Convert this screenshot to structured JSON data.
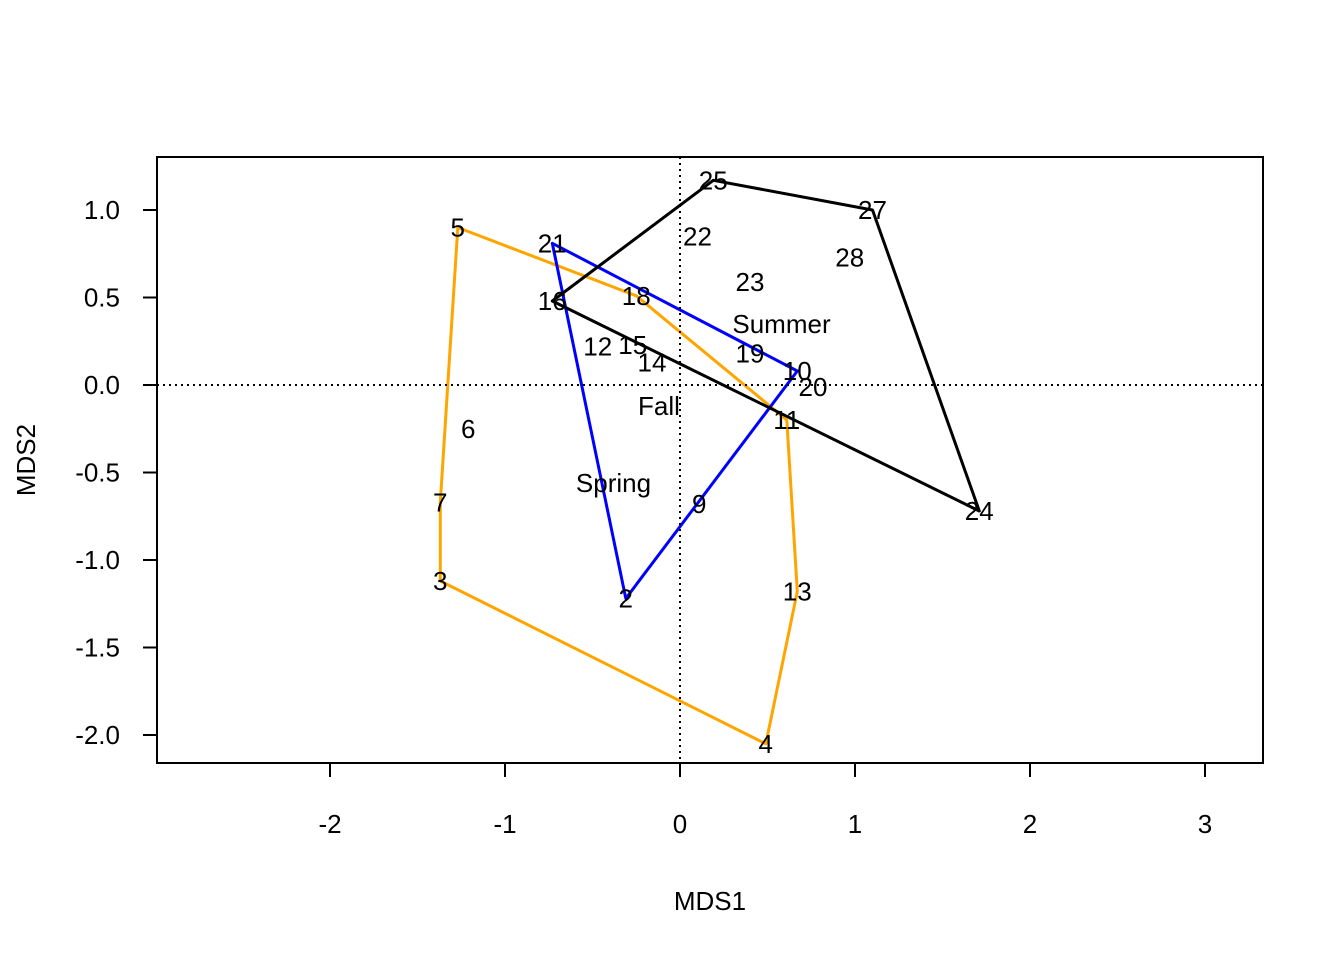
{
  "chart_data": {
    "type": "scatter",
    "title": "",
    "xlabel": "MDS1",
    "ylabel": "MDS2",
    "xlim": [
      -3,
      3.3
    ],
    "ylim": [
      -2.16,
      1.3
    ],
    "x_ticks": [
      -2,
      -1,
      0,
      1,
      2,
      3
    ],
    "x_tick_labels": [
      "-2",
      "-1",
      "0",
      "1",
      "2",
      "3"
    ],
    "y_ticks": [
      -2.0,
      -1.5,
      -1.0,
      -0.5,
      0.0,
      0.5,
      1.0
    ],
    "y_tick_labels": [
      "-2.0",
      "-1.5",
      "-1.0",
      "-0.5",
      "0.0",
      "0.5",
      "1.0"
    ],
    "reference_lines": {
      "x": 0,
      "y": 0,
      "style": "dotted"
    },
    "grid": false,
    "points": [
      {
        "label": "2",
        "x": -0.31,
        "y": -1.22
      },
      {
        "label": "3",
        "x": -1.37,
        "y": -1.12
      },
      {
        "label": "4",
        "x": 0.49,
        "y": -2.05
      },
      {
        "label": "5",
        "x": -1.27,
        "y": 0.9
      },
      {
        "label": "6",
        "x": -1.21,
        "y": -0.25
      },
      {
        "label": "7",
        "x": -1.37,
        "y": -0.67
      },
      {
        "label": "9",
        "x": 0.11,
        "y": -0.68
      },
      {
        "label": "10",
        "x": 0.67,
        "y": 0.08
      },
      {
        "label": "11",
        "x": 0.61,
        "y": -0.2
      },
      {
        "label": "12",
        "x": -0.47,
        "y": 0.22
      },
      {
        "label": "13",
        "x": 0.67,
        "y": -1.18
      },
      {
        "label": "14",
        "x": -0.16,
        "y": 0.13
      },
      {
        "label": "15",
        "x": -0.27,
        "y": 0.23
      },
      {
        "label": "16",
        "x": -0.73,
        "y": 0.48
      },
      {
        "label": "18",
        "x": -0.25,
        "y": 0.51
      },
      {
        "label": "19",
        "x": 0.4,
        "y": 0.18
      },
      {
        "label": "20",
        "x": 0.76,
        "y": -0.01
      },
      {
        "label": "21",
        "x": -0.73,
        "y": 0.81
      },
      {
        "label": "22",
        "x": 0.1,
        "y": 0.85
      },
      {
        "label": "23",
        "x": 0.4,
        "y": 0.59
      },
      {
        "label": "24",
        "x": 1.71,
        "y": -0.72
      },
      {
        "label": "25",
        "x": 0.19,
        "y": 1.17
      },
      {
        "label": "27",
        "x": 1.1,
        "y": 1.0
      },
      {
        "label": "28",
        "x": 0.97,
        "y": 0.73
      }
    ],
    "group_labels": [
      {
        "label": "Summer",
        "x": 0.58,
        "y": 0.35
      },
      {
        "label": "Fall",
        "x": -0.12,
        "y": -0.12
      },
      {
        "label": "Spring",
        "x": -0.38,
        "y": -0.56
      }
    ],
    "hulls": [
      {
        "color": "#ffa500",
        "points": [
          [
            -1.27,
            0.9
          ],
          [
            -0.25,
            0.51
          ],
          [
            0.61,
            -0.2
          ],
          [
            0.67,
            -1.18
          ],
          [
            0.49,
            -2.05
          ],
          [
            -1.37,
            -1.12
          ],
          [
            -1.37,
            -0.67
          ]
        ]
      },
      {
        "color": "#0000ff",
        "points": [
          [
            -0.73,
            0.81
          ],
          [
            0.67,
            0.08
          ],
          [
            -0.31,
            -1.22
          ]
        ]
      },
      {
        "color": "#000000",
        "points": [
          [
            -0.73,
            0.48
          ],
          [
            0.19,
            1.17
          ],
          [
            1.1,
            1.0
          ],
          [
            1.71,
            -0.72
          ]
        ]
      }
    ]
  }
}
